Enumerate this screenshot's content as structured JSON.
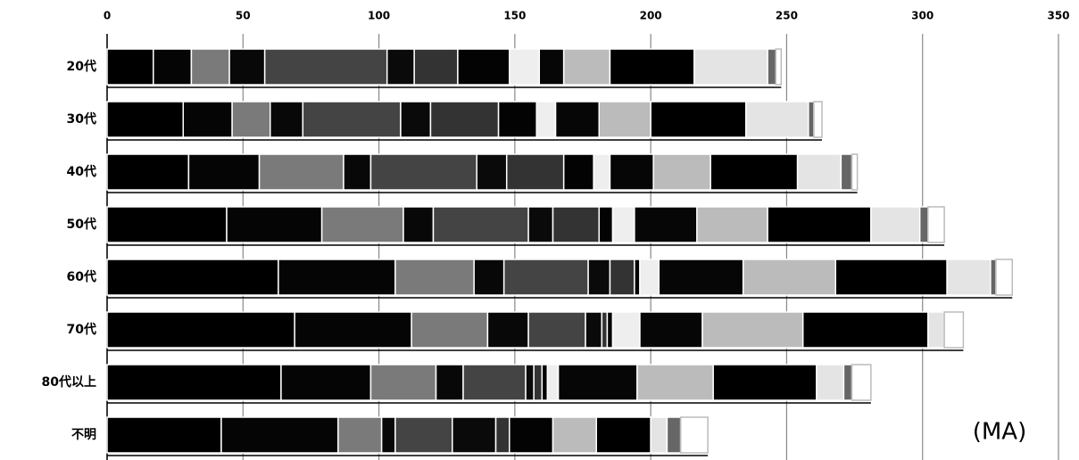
{
  "chart_data": {
    "type": "stacked-bar-horizontal",
    "categories": [
      "20代",
      "30代",
      "40代",
      "50代",
      "60代",
      "70代",
      "80代以上",
      "不明"
    ],
    "xlim": [
      0,
      350
    ],
    "xticks": [
      0,
      50,
      100,
      150,
      200,
      250,
      300,
      350
    ],
    "annotation": "(MA)",
    "series": [
      {
        "color": "#000000",
        "values": [
          17,
          28,
          30,
          44,
          63,
          69,
          64,
          42
        ]
      },
      {
        "color": "#050505",
        "values": [
          14,
          18,
          26,
          35,
          43,
          43,
          33,
          43
        ]
      },
      {
        "color": "#7a7a7a",
        "values": [
          14,
          14,
          31,
          30,
          29,
          28,
          24,
          16
        ]
      },
      {
        "color": "#080808",
        "values": [
          13,
          12,
          10,
          11,
          11,
          15,
          10,
          5
        ]
      },
      {
        "color": "#444444",
        "values": [
          45,
          36,
          39,
          35,
          31,
          21,
          23,
          21
        ]
      },
      {
        "color": "#0a0a0a",
        "values": [
          10,
          11,
          11,
          9,
          8,
          6,
          3,
          16
        ]
      },
      {
        "color": "#333333",
        "values": [
          16,
          25,
          21,
          17,
          9,
          2,
          3,
          5
        ]
      },
      {
        "color": "#030303",
        "values": [
          19,
          14,
          11,
          5,
          2,
          2,
          2,
          16
        ]
      },
      {
        "color": "#eeeeee",
        "values": [
          11,
          7,
          6,
          8,
          7,
          10,
          4,
          0
        ]
      },
      {
        "color": "#060606",
        "values": [
          9,
          16,
          16,
          23,
          31,
          23,
          29,
          0
        ]
      },
      {
        "color": "#bbbbbb",
        "values": [
          17,
          19,
          21,
          26,
          34,
          37,
          28,
          16
        ]
      },
      {
        "color": "#000000",
        "values": [
          31,
          35,
          32,
          38,
          41,
          46,
          38,
          20
        ]
      },
      {
        "color": "#e4e4e4",
        "values": [
          27,
          23,
          16,
          18,
          16,
          6,
          10,
          6
        ]
      },
      {
        "color": "#666666",
        "values": [
          3,
          2,
          4,
          3,
          2,
          0,
          3,
          5
        ]
      },
      {
        "color": "#ffffff",
        "values": [
          2,
          3,
          2,
          6,
          6,
          7,
          7,
          10
        ]
      }
    ]
  }
}
